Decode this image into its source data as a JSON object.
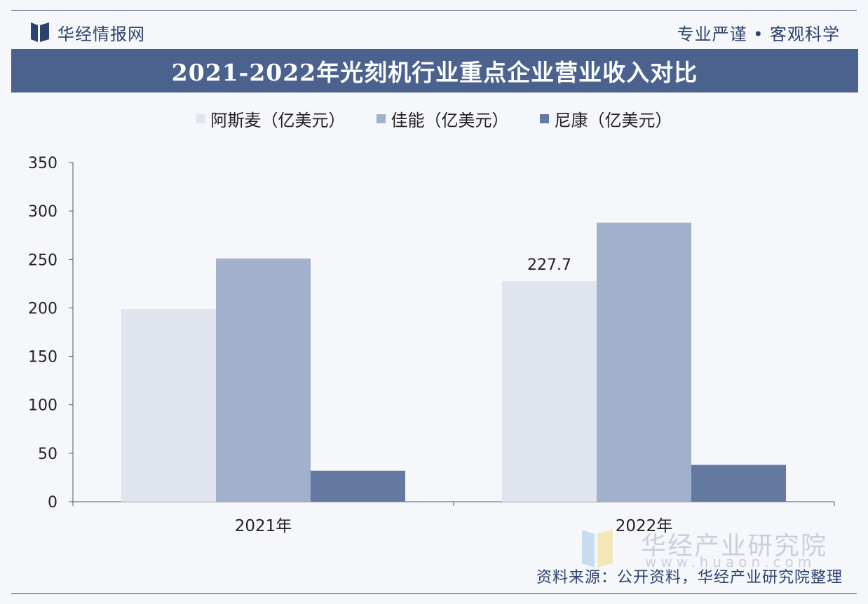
{
  "header": {
    "brand": "华经情报网",
    "tagline": "专业严谨 • 客观科学"
  },
  "watermark": {
    "name": "华经产业研究院",
    "url": "www.huaon.com"
  },
  "source": "资料来源：公开资料，华经产业研究院整理",
  "colors": {
    "title_bar": "#4b628f",
    "asml": "#dfe4ee",
    "canon": "#a1b0cb",
    "nikon": "#64799f"
  },
  "chart_data": {
    "type": "bar",
    "title": "2021-2022年光刻机行业重点企业营业收入对比",
    "categories": [
      "2021年",
      "2022年"
    ],
    "series": [
      {
        "name": "阿斯麦（亿美元）",
        "values": [
          199,
          227.7
        ],
        "color": "#dfe4ee"
      },
      {
        "name": "佳能（亿美元）",
        "values": [
          251,
          288
        ],
        "color": "#a1b0cb"
      },
      {
        "name": "尼康（亿美元）",
        "values": [
          32,
          38
        ],
        "color": "#64799f"
      }
    ],
    "data_labels": [
      {
        "series": 0,
        "category": 1,
        "text": "227.7"
      }
    ],
    "ylim": [
      0,
      350
    ],
    "yticks": [
      0,
      50,
      100,
      150,
      200,
      250,
      300,
      350
    ],
    "xlabel": "",
    "ylabel": "",
    "legend": "top",
    "grid": false
  }
}
